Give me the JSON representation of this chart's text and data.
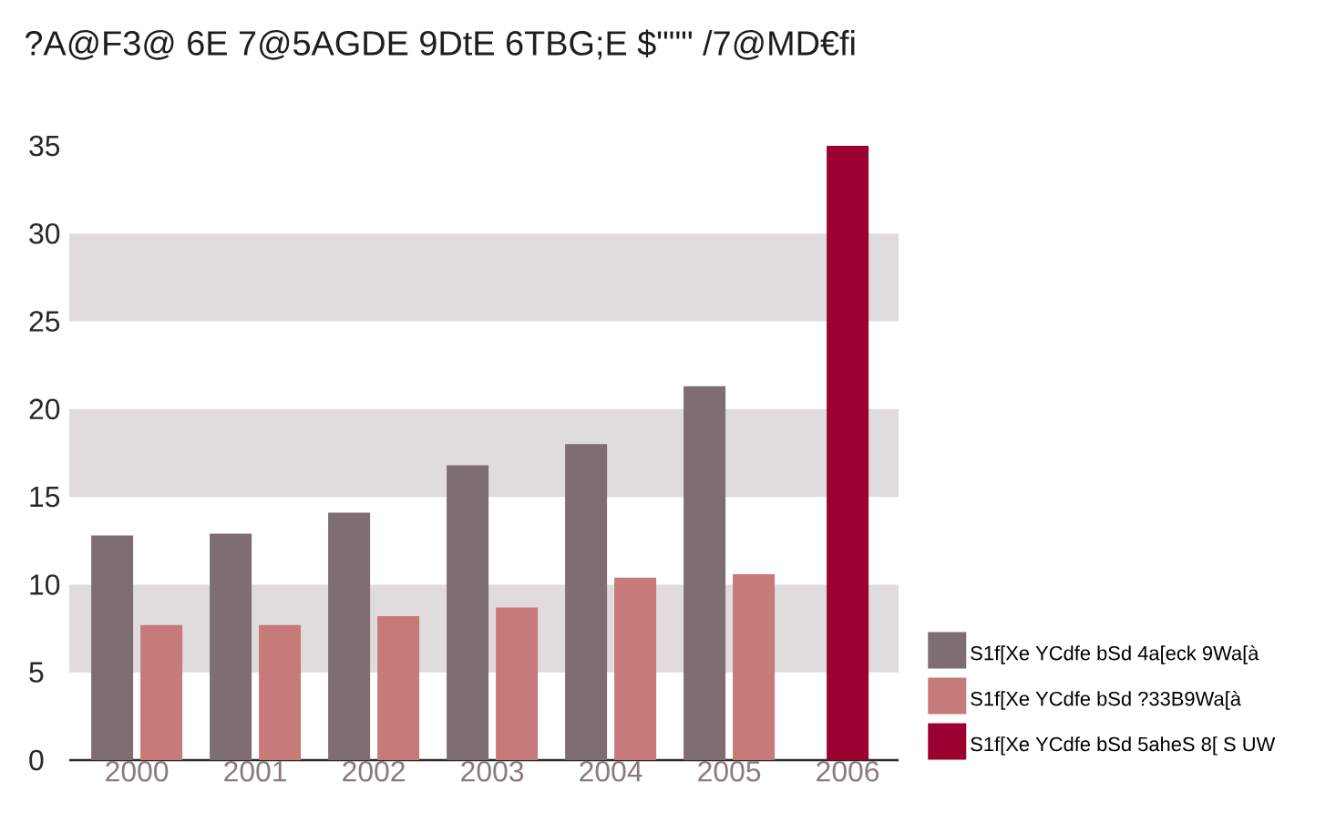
{
  "chart_data": {
    "type": "bar",
    "title": "?A@F3@ 6E 7@5AGDE 9DtE 6TBG;E $\"\"\" /7@MD€fi",
    "categories": [
      "2000",
      "2001",
      "2002",
      "2003",
      "2004",
      "2005",
      "2006"
    ],
    "series": [
      {
        "name": "S1f[Xe YCdfe bSd 4a[eck 9Wa[à",
        "color": "#7e6d72",
        "values": [
          12.8,
          12.9,
          14.1,
          16.8,
          18.0,
          21.3,
          null
        ]
      },
      {
        "name": "S1f[Xe YCdfe bSd ?33B9Wa[à",
        "color": "#c67a7a",
        "values": [
          7.7,
          7.7,
          8.2,
          8.7,
          10.4,
          10.6,
          null
        ]
      },
      {
        "name": "S1f[Xe YCdfe bSd 5aheS 8[ S UW",
        "color": "#9a0030",
        "values": [
          null,
          null,
          null,
          null,
          null,
          null,
          35
        ]
      }
    ],
    "ylim": [
      0,
      35
    ],
    "yticks": [
      0,
      5,
      10,
      15,
      20,
      25,
      30,
      35
    ],
    "bands": [
      {
        "axis": "y",
        "from": 5,
        "to": 10,
        "color": "#e0dcdd"
      },
      {
        "axis": "y",
        "from": 15,
        "to": 20,
        "color": "#e0dcdd"
      },
      {
        "axis": "y",
        "from": 25,
        "to": 30,
        "color": "#e0dcdd"
      }
    ],
    "legend": "right",
    "grid": false
  }
}
